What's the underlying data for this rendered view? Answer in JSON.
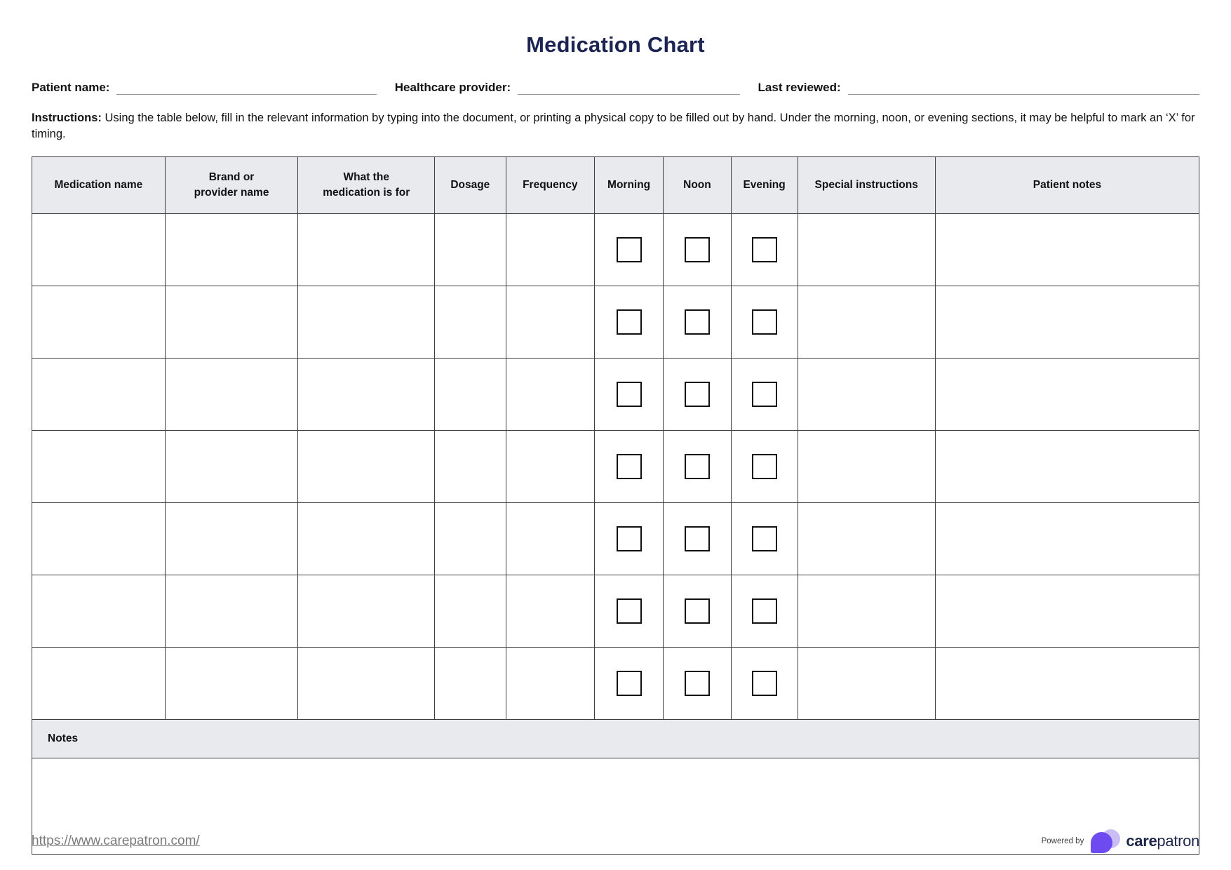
{
  "page": {
    "title": "Medication Chart",
    "fields": [
      {
        "label": "Patient name:",
        "value": ""
      },
      {
        "label": "Healthcare provider:",
        "value": ""
      },
      {
        "label": "Last reviewed:",
        "value": ""
      }
    ],
    "instructions_label": "Instructions:",
    "instructions_text": "Using the table below, fill in the relevant information by typing into the document, or printing a physical copy to be filled out by hand. Under the morning, noon, or evening sections, it may be helpful to mark an ‘X’ for timing."
  },
  "table": {
    "columns": [
      {
        "label": "Medication name",
        "type": "text"
      },
      {
        "label": "Brand or\nprovider name",
        "type": "text"
      },
      {
        "label": "What the\nmedication is for",
        "type": "text"
      },
      {
        "label": "Dosage",
        "type": "text"
      },
      {
        "label": "Frequency",
        "type": "text"
      },
      {
        "label": "Morning",
        "type": "checkbox"
      },
      {
        "label": "Noon",
        "type": "checkbox"
      },
      {
        "label": "Evening",
        "type": "checkbox"
      },
      {
        "label": "Special instructions",
        "type": "text"
      },
      {
        "label": "Patient notes",
        "type": "text"
      }
    ],
    "rows": [
      {
        "values": [
          "",
          "",
          "",
          "",
          "",
          false,
          false,
          false,
          "",
          ""
        ]
      },
      {
        "values": [
          "",
          "",
          "",
          "",
          "",
          false,
          false,
          false,
          "",
          ""
        ]
      },
      {
        "values": [
          "",
          "",
          "",
          "",
          "",
          false,
          false,
          false,
          "",
          ""
        ]
      },
      {
        "values": [
          "",
          "",
          "",
          "",
          "",
          false,
          false,
          false,
          "",
          ""
        ]
      },
      {
        "values": [
          "",
          "",
          "",
          "",
          "",
          false,
          false,
          false,
          "",
          ""
        ]
      },
      {
        "values": [
          "",
          "",
          "",
          "",
          "",
          false,
          false,
          false,
          "",
          ""
        ]
      },
      {
        "values": [
          "",
          "",
          "",
          "",
          "",
          false,
          false,
          false,
          "",
          ""
        ]
      }
    ],
    "notes": {
      "label": "Notes",
      "value": ""
    }
  },
  "footer": {
    "link": "https://www.carepatron.com/",
    "powered_by_label": "Powered by",
    "brand_bold": "care",
    "brand_regular": "patron"
  },
  "colors": {
    "title_navy": "#1b2452",
    "header_bg": "#e8eaee",
    "table_border": "#3f3f3f",
    "link_gray": "#7a7a7a",
    "logo_purple": "#6e4bf0",
    "logo_light_purple": "#c9bdf4",
    "brand_navy": "#1e2749"
  }
}
